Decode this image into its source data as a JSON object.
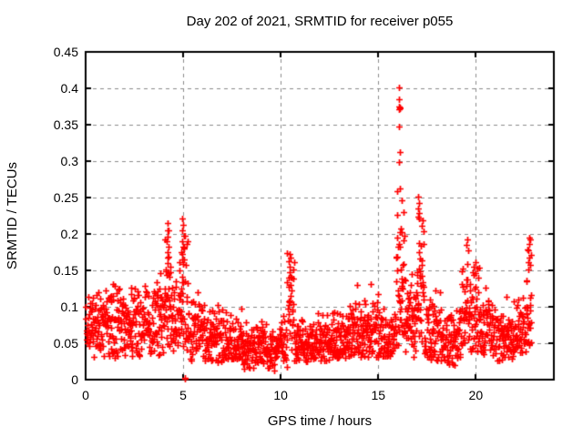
{
  "figure": {
    "background": "#ffffff",
    "text_color": "#000000"
  },
  "chart_data": {
    "type": "scatter",
    "title": "Day 202 of 2021, SRMTID for receiver p055",
    "xlabel": "GPS time / hours",
    "ylabel": "SRMTID / TECUs",
    "xlim": [
      0,
      24
    ],
    "ylim": [
      0,
      0.45
    ],
    "xticks": [
      0,
      5,
      10,
      15,
      20
    ],
    "xtick_labels": [
      "0",
      "5",
      "10",
      "15",
      "20"
    ],
    "yticks": [
      0,
      0.05,
      0.1,
      0.15,
      0.2,
      0.25,
      0.3,
      0.35,
      0.4,
      0.45
    ],
    "ytick_labels": [
      "0",
      "0.05",
      "0.1",
      "0.15",
      "0.2",
      "0.25",
      "0.3",
      "0.35",
      "0.4",
      "0.45"
    ],
    "grid": {
      "show": true,
      "color": "#8c8c8c",
      "dash": [
        4,
        4
      ],
      "line_width": 1
    },
    "axes": {
      "color": "#000000",
      "border_width": 2,
      "tick_length": 6,
      "ticks_mirrored": true
    },
    "legend": {
      "show": false
    },
    "series": [
      {
        "name": "SRMTID",
        "marker": "plus",
        "marker_color": "#ff0000",
        "marker_size": 7,
        "marker_line_width": 1.7,
        "time_coverage_hours": [
          0,
          22.85
        ],
        "seed": 20210721,
        "segment_fields": [
          "t_start",
          "t_end",
          "dt_hours",
          "mean",
          "spread",
          "min",
          "max",
          "tail_prob",
          "tail_extra"
        ],
        "segments": [
          [
            0.0,
            0.35,
            0.012,
            0.08,
            0.05,
            0.045,
            0.12,
            0,
            0
          ],
          [
            0.35,
            1.3,
            0.013,
            0.08,
            0.055,
            0.03,
            0.125,
            0,
            0
          ],
          [
            1.3,
            2.3,
            0.013,
            0.075,
            0.055,
            0.028,
            0.13,
            0,
            0
          ],
          [
            2.3,
            3.3,
            0.013,
            0.078,
            0.055,
            0.03,
            0.135,
            0,
            0
          ],
          [
            3.3,
            4.05,
            0.013,
            0.082,
            0.06,
            0.03,
            0.15,
            0,
            0
          ],
          [
            4.05,
            4.4,
            0.01,
            0.105,
            0.09,
            0.04,
            0.215,
            0.18,
            0.07
          ],
          [
            4.4,
            4.78,
            0.013,
            0.08,
            0.055,
            0.035,
            0.135,
            0,
            0
          ],
          [
            4.78,
            5.25,
            0.01,
            0.1,
            0.095,
            0.03,
            0.222,
            0.22,
            0.08
          ],
          [
            5.25,
            6.1,
            0.013,
            0.065,
            0.045,
            0.025,
            0.12,
            0,
            0
          ],
          [
            6.1,
            7.1,
            0.013,
            0.055,
            0.04,
            0.02,
            0.105,
            0,
            0
          ],
          [
            7.1,
            8.1,
            0.013,
            0.05,
            0.04,
            0.018,
            0.115,
            0,
            0
          ],
          [
            8.1,
            9.1,
            0.013,
            0.045,
            0.035,
            0.015,
            0.09,
            0,
            0
          ],
          [
            9.1,
            9.95,
            0.014,
            0.04,
            0.03,
            0.012,
            0.085,
            0,
            0
          ],
          [
            9.95,
            10.32,
            0.013,
            0.05,
            0.04,
            0.015,
            0.1,
            0,
            0
          ],
          [
            10.32,
            10.68,
            0.011,
            0.095,
            0.075,
            0.03,
            0.175,
            0.15,
            0.05
          ],
          [
            10.68,
            11.6,
            0.013,
            0.05,
            0.032,
            0.025,
            0.092,
            0,
            0
          ],
          [
            11.6,
            12.6,
            0.013,
            0.05,
            0.033,
            0.026,
            0.095,
            0,
            0
          ],
          [
            12.6,
            13.5,
            0.013,
            0.055,
            0.038,
            0.028,
            0.112,
            0,
            0
          ],
          [
            13.5,
            14.3,
            0.013,
            0.06,
            0.045,
            0.03,
            0.138,
            0,
            0
          ],
          [
            14.3,
            15.25,
            0.013,
            0.065,
            0.045,
            0.03,
            0.128,
            0,
            0
          ],
          [
            15.25,
            15.9,
            0.013,
            0.06,
            0.038,
            0.03,
            0.112,
            0,
            0
          ],
          [
            15.9,
            16.35,
            0.009,
            0.13,
            0.11,
            0.04,
            0.26,
            0.3,
            0.1
          ],
          [
            16.35,
            17.0,
            0.012,
            0.08,
            0.065,
            0.03,
            0.175,
            0,
            0
          ],
          [
            17.0,
            17.35,
            0.01,
            0.12,
            0.095,
            0.04,
            0.255,
            0.2,
            0.06
          ],
          [
            17.35,
            18.25,
            0.013,
            0.065,
            0.05,
            0.025,
            0.135,
            0,
            0
          ],
          [
            18.25,
            19.25,
            0.013,
            0.055,
            0.042,
            0.02,
            0.125,
            0,
            0
          ],
          [
            19.25,
            20.15,
            0.012,
            0.095,
            0.065,
            0.038,
            0.195,
            0,
            0
          ],
          [
            20.15,
            21.05,
            0.013,
            0.07,
            0.05,
            0.03,
            0.14,
            0,
            0
          ],
          [
            21.05,
            22.05,
            0.013,
            0.06,
            0.042,
            0.025,
            0.118,
            0,
            0
          ],
          [
            22.05,
            22.58,
            0.013,
            0.065,
            0.042,
            0.03,
            0.12,
            0,
            0
          ],
          [
            22.58,
            22.85,
            0.01,
            0.1,
            0.085,
            0.04,
            0.198,
            0,
            0
          ]
        ],
        "outlier_points": [
          [
            1.42,
            0.131
          ],
          [
            3.85,
            0.146
          ],
          [
            4.17,
            0.19
          ],
          [
            4.18,
            0.215
          ],
          [
            4.18,
            0.16
          ],
          [
            4.19,
            0.175
          ],
          [
            4.2,
            0.196
          ],
          [
            4.21,
            0.168
          ],
          [
            4.22,
            0.205
          ],
          [
            4.23,
            0.183
          ],
          [
            4.93,
            0.205
          ],
          [
            4.95,
            0.221
          ],
          [
            4.96,
            0.173
          ],
          [
            4.97,
            0.19
          ],
          [
            4.99,
            0.212
          ],
          [
            5.0,
            0.182
          ],
          [
            5.02,
            0.198
          ],
          [
            5.03,
            0.165
          ],
          [
            5.09,
            0.001
          ],
          [
            5.11,
            0.002
          ],
          [
            10.42,
            0.14
          ],
          [
            10.43,
            0.163
          ],
          [
            10.45,
            0.172
          ],
          [
            10.46,
            0.147
          ],
          [
            10.48,
            0.155
          ],
          [
            13.9,
            0.13
          ],
          [
            14.6,
            0.131
          ],
          [
            16.05,
            0.375
          ],
          [
            16.05,
            0.299
          ],
          [
            16.07,
            0.385
          ],
          [
            16.07,
            0.347
          ],
          [
            16.08,
            0.401
          ],
          [
            16.08,
            0.371
          ],
          [
            16.09,
            0.262
          ],
          [
            16.1,
            0.374
          ],
          [
            16.1,
            0.313
          ],
          [
            16.12,
            0.372
          ],
          [
            17.04,
            0.224
          ],
          [
            17.05,
            0.251
          ],
          [
            17.06,
            0.235
          ],
          [
            17.08,
            0.243
          ],
          [
            17.1,
            0.229
          ],
          [
            19.5,
            0.185
          ],
          [
            19.55,
            0.193
          ],
          [
            19.6,
            0.178
          ],
          [
            22.7,
            0.178
          ],
          [
            22.72,
            0.195
          ],
          [
            22.74,
            0.168
          ],
          [
            22.75,
            0.186
          ],
          [
            22.77,
            0.158
          ]
        ]
      }
    ]
  }
}
